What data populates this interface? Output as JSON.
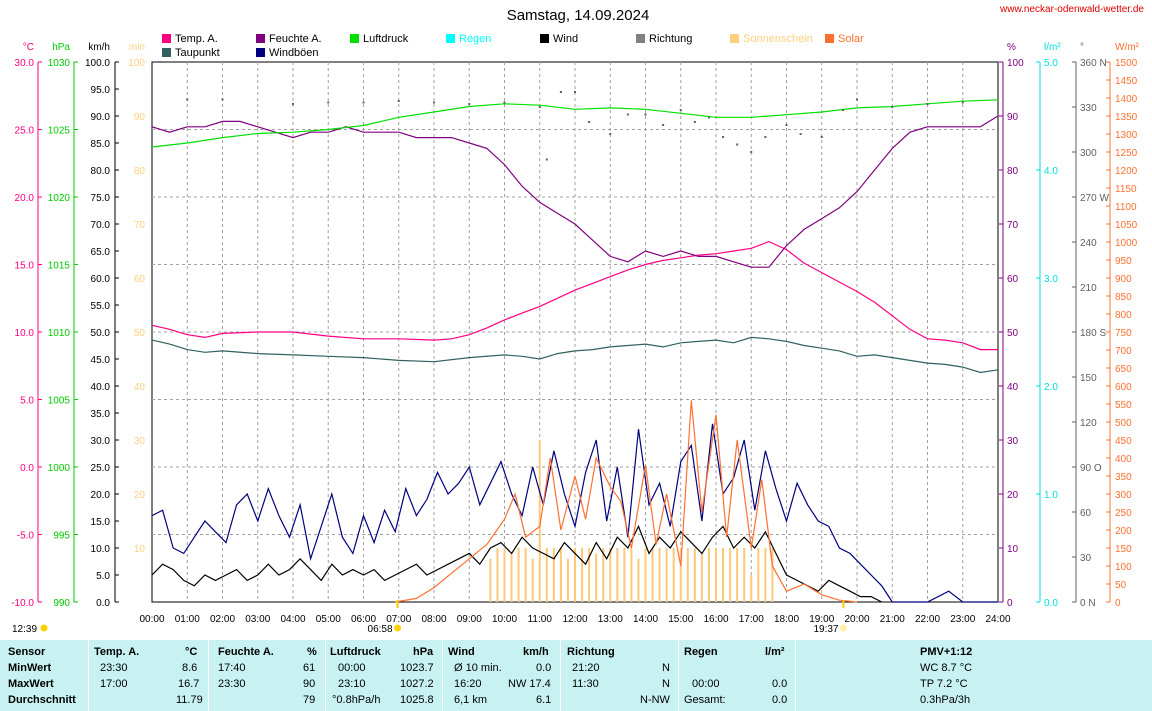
{
  "site_url": "www.neckar-odenwald-wetter.de",
  "chart_data": {
    "type": "line",
    "title": "Samstag, 14.09.2024",
    "x_ticks": [
      "00:00",
      "01:00",
      "02:00",
      "03:00",
      "04:00",
      "05:00",
      "06:00",
      "07:00",
      "08:00",
      "09:00",
      "10:00",
      "11:00",
      "12:00",
      "13:00",
      "14:00",
      "15:00",
      "16:00",
      "17:00",
      "18:00",
      "19:00",
      "20:00",
      "21:00",
      "22:00",
      "23:00",
      "24:00"
    ],
    "xlim": [
      0,
      24
    ],
    "axes": {
      "temp": {
        "unit": "°C",
        "ticks": [
          "30.0",
          "25.0",
          "20.0",
          "15.0",
          "10.0",
          "5.0",
          "0.0",
          "-5.0",
          "-10.0"
        ],
        "color": "#ff0080"
      },
      "pressure": {
        "unit": "hPa",
        "ticks": [
          "1030",
          "1025",
          "1020",
          "1015",
          "1010",
          "1005",
          "1000",
          "995",
          "990"
        ],
        "color": "#00c800"
      },
      "wind": {
        "unit": "km/h",
        "ticks": [
          "100.0",
          "95.0",
          "90.0",
          "85.0",
          "80.0",
          "75.0",
          "70.0",
          "65.0",
          "60.0",
          "55.0",
          "50.0",
          "45.0",
          "40.0",
          "35.0",
          "30.0",
          "25.0",
          "20.0",
          "15.0",
          "10.0",
          "5.0",
          "0.0"
        ],
        "color": "#000000"
      },
      "sun": {
        "unit": "min",
        "ticks": [
          "100",
          "90",
          "80",
          "70",
          "60",
          "50",
          "40",
          "30",
          "20",
          "10"
        ],
        "color": "#ffd080"
      },
      "humidity": {
        "unit": "%",
        "ticks": [
          "100",
          "90",
          "80",
          "70",
          "60",
          "50",
          "40",
          "30",
          "20",
          "10",
          "0"
        ],
        "color": "#800080"
      },
      "rain": {
        "unit": "l/m²",
        "ticks": [
          "5.0",
          "4.0",
          "3.0",
          "2.0",
          "1.0",
          "0.0"
        ],
        "color": "#00e0e0"
      },
      "direction": {
        "unit": "°",
        "ticks": [
          "360 N",
          "330",
          "300",
          "270 W",
          "240",
          "210",
          "180 S",
          "150",
          "120",
          "90 O",
          "60",
          "30",
          "0 N"
        ],
        "color": "#606060"
      },
      "solar": {
        "unit": "W/m²",
        "ticks": [
          "1500",
          "1450",
          "1400",
          "1350",
          "1300",
          "1250",
          "1200",
          "1150",
          "1100",
          "1050",
          "1000",
          "950",
          "900",
          "850",
          "800",
          "750",
          "700",
          "650",
          "600",
          "550",
          "500",
          "450",
          "400",
          "350",
          "300",
          "250",
          "200",
          "150",
          "100",
          "50",
          "0"
        ],
        "color": "#ff7030"
      }
    },
    "legend": [
      {
        "name": "Temp. A.",
        "color": "#ff0080"
      },
      {
        "name": "Feuchte A.",
        "color": "#800080"
      },
      {
        "name": "Luftdruck",
        "color": "#00e000"
      },
      {
        "name": "Regen",
        "color": "#00ffff"
      },
      {
        "name": "Wind",
        "color": "#000000"
      },
      {
        "name": "Richtung",
        "color": "#808080"
      },
      {
        "name": "Sonnenschein",
        "color": "#ffd080"
      },
      {
        "name": "Solar",
        "color": "#ff7030"
      },
      {
        "name": "Taupunkt",
        "color": "#306060"
      },
      {
        "name": "Windböen",
        "color": "#000080"
      }
    ],
    "markers": {
      "sunrise": "06:58",
      "sunset": "19:37",
      "moon": "12:39"
    },
    "series": [
      {
        "name": "Temp. A.",
        "axis": "temp",
        "color": "#ff0080",
        "x": [
          0,
          0.5,
          1,
          1.5,
          2,
          3,
          4,
          5,
          6,
          7,
          8,
          8.5,
          9,
          9.5,
          10,
          10.5,
          11,
          11.5,
          12,
          12.5,
          13,
          13.5,
          14,
          14.5,
          15,
          15.5,
          16,
          16.5,
          17,
          17.5,
          18,
          18.5,
          19,
          19.5,
          20,
          20.5,
          21,
          21.5,
          22,
          22.5,
          23,
          23.5,
          24
        ],
        "y": [
          10.5,
          10.2,
          9.8,
          9.6,
          9.9,
          10.0,
          10.0,
          9.7,
          9.5,
          9.5,
          9.4,
          9.5,
          9.8,
          10.3,
          10.9,
          11.4,
          11.9,
          12.5,
          13.1,
          13.6,
          14.1,
          14.6,
          15.0,
          15.3,
          15.5,
          15.7,
          15.8,
          16.0,
          16.2,
          16.7,
          16.1,
          15.1,
          14.4,
          13.7,
          13.0,
          12.2,
          11.2,
          10.2,
          9.5,
          9.4,
          9.2,
          8.7,
          8.7
        ]
      },
      {
        "name": "Feuchte A.",
        "axis": "humidity",
        "color": "#800080",
        "x": [
          0,
          0.5,
          1,
          1.5,
          2,
          2.5,
          3,
          3.5,
          4,
          4.5,
          5,
          5.5,
          6,
          6.5,
          7,
          7.5,
          8,
          8.5,
          9,
          9.5,
          10,
          10.5,
          11,
          11.5,
          12,
          12.5,
          13,
          13.5,
          14,
          14.5,
          15,
          15.5,
          16,
          16.5,
          17,
          17.5,
          18,
          18.5,
          19,
          19.5,
          20,
          20.5,
          21,
          21.5,
          22,
          22.5,
          23,
          23.5,
          24
        ],
        "y": [
          88,
          87,
          88,
          88,
          89,
          89,
          88,
          87,
          86,
          87,
          87,
          88,
          87,
          87,
          87,
          86,
          86,
          86,
          85,
          84,
          81,
          77,
          74,
          72,
          70,
          67,
          64,
          63,
          65,
          64,
          65,
          64,
          64,
          63,
          62,
          62,
          66,
          69,
          71,
          73,
          76,
          80,
          84,
          87,
          88,
          88,
          88,
          88,
          90
        ]
      },
      {
        "name": "Taupunkt",
        "axis": "temp",
        "color": "#306060",
        "x": [
          0,
          0.5,
          1,
          1.5,
          2,
          3,
          4,
          5,
          6,
          7,
          8,
          9,
          10,
          10.5,
          11,
          11.5,
          12,
          12.5,
          13,
          13.5,
          14,
          14.5,
          15,
          15.5,
          16,
          16.5,
          17,
          17.5,
          18,
          18.5,
          19,
          19.5,
          20,
          20.5,
          21,
          21.5,
          22,
          22.5,
          23,
          23.5,
          24
        ],
        "y": [
          9.4,
          9.1,
          8.7,
          8.5,
          8.6,
          8.4,
          8.3,
          8.2,
          8.1,
          7.9,
          7.8,
          8.1,
          8.3,
          8.2,
          8.0,
          8.4,
          8.6,
          8.7,
          8.9,
          9.0,
          9.1,
          8.9,
          9.2,
          9.3,
          9.4,
          9.2,
          9.6,
          9.5,
          9.3,
          9.0,
          8.8,
          8.6,
          8.2,
          8.3,
          8.1,
          7.9,
          7.7,
          7.6,
          7.4,
          7.0,
          7.2
        ]
      },
      {
        "name": "Luftdruck",
        "axis": "pressure",
        "color": "#00e000",
        "x": [
          0,
          1,
          2,
          3,
          4,
          5,
          6,
          7,
          8,
          9,
          10,
          11,
          12,
          13,
          14,
          15,
          16,
          17,
          18,
          19,
          20,
          21,
          22,
          23,
          24
        ],
        "y": [
          1023.7,
          1024.0,
          1024.4,
          1024.7,
          1024.8,
          1025.0,
          1025.3,
          1025.9,
          1026.3,
          1026.7,
          1026.9,
          1026.8,
          1026.5,
          1026.6,
          1026.5,
          1026.2,
          1025.9,
          1025.9,
          1026.1,
          1026.3,
          1026.6,
          1026.7,
          1026.9,
          1027.1,
          1027.2
        ]
      },
      {
        "name": "Windböen",
        "axis": "wind",
        "color": "#000080",
        "x": [
          0,
          0.3,
          0.6,
          0.9,
          1.2,
          1.5,
          1.8,
          2.1,
          2.4,
          2.7,
          3.0,
          3.3,
          3.6,
          3.9,
          4.2,
          4.5,
          4.8,
          5.1,
          5.4,
          5.7,
          6.0,
          6.3,
          6.6,
          6.9,
          7.2,
          7.5,
          7.8,
          8.1,
          8.4,
          8.7,
          9.0,
          9.3,
          9.6,
          9.9,
          10.2,
          10.5,
          10.8,
          11.1,
          11.4,
          11.7,
          12.0,
          12.3,
          12.6,
          12.9,
          13.2,
          13.5,
          13.8,
          14.1,
          14.4,
          14.7,
          15.0,
          15.3,
          15.6,
          15.9,
          16.2,
          16.5,
          16.8,
          17.1,
          17.4,
          17.7,
          18.0,
          18.3,
          18.6,
          18.9,
          19.2,
          19.5,
          19.8,
          20.1,
          20.4,
          20.7,
          21.0,
          22.0,
          22.6,
          23.0,
          24.0
        ],
        "y": [
          16,
          17,
          10,
          9,
          12,
          15,
          13,
          11,
          18,
          20,
          15,
          21,
          16,
          12,
          18,
          8,
          14,
          20,
          12,
          9,
          16,
          11,
          17,
          13,
          21,
          16,
          19,
          24,
          20,
          22,
          25,
          18,
          22,
          26,
          20,
          16,
          25,
          18,
          28,
          20,
          14,
          24,
          30,
          15,
          25,
          12,
          32,
          18,
          22,
          14,
          26,
          29,
          15,
          33,
          20,
          23,
          30,
          17,
          28,
          21,
          15,
          22,
          18,
          15,
          14,
          10,
          9,
          7,
          5,
          3,
          0,
          0,
          2,
          0,
          0
        ]
      },
      {
        "name": "Wind",
        "axis": "wind",
        "color": "#000000",
        "x": [
          0,
          0.3,
          0.6,
          0.9,
          1.2,
          1.5,
          1.8,
          2.1,
          2.4,
          2.7,
          3.0,
          3.3,
          3.6,
          3.9,
          4.2,
          4.5,
          4.8,
          5.1,
          5.4,
          5.7,
          6.0,
          6.3,
          6.6,
          6.9,
          7.2,
          7.5,
          7.8,
          8.1,
          8.4,
          8.7,
          9.0,
          9.3,
          9.6,
          9.9,
          10.2,
          10.5,
          10.8,
          11.1,
          11.4,
          11.7,
          12.0,
          12.3,
          12.6,
          12.9,
          13.2,
          13.5,
          13.8,
          14.1,
          14.4,
          14.7,
          15.0,
          15.3,
          15.6,
          15.9,
          16.2,
          16.5,
          16.8,
          17.1,
          17.4,
          17.7,
          18.0,
          18.3,
          18.6,
          18.9,
          19.2,
          19.5,
          19.8,
          20.1,
          20.4,
          20.7
        ],
        "y": [
          5,
          7,
          6,
          4,
          3,
          5,
          4,
          5,
          6,
          4,
          5,
          7,
          5,
          6,
          8,
          6,
          4,
          7,
          5,
          6,
          5,
          6,
          4,
          5,
          6,
          7,
          5,
          6,
          7,
          8,
          9,
          7,
          10,
          11,
          9,
          12,
          10,
          9,
          8,
          11,
          9,
          7,
          11,
          8,
          12,
          10,
          14,
          9,
          12,
          10,
          13,
          11,
          9,
          12,
          14,
          10,
          12,
          10,
          13,
          9,
          5,
          4,
          3,
          2,
          4,
          3,
          2,
          1,
          1,
          0
        ]
      },
      {
        "name": "Solar",
        "axis": "solar",
        "color": "#ff7030",
        "x": [
          6.9,
          7.5,
          8,
          8.5,
          9,
          9.5,
          10,
          10.3,
          10.6,
          11,
          11.3,
          11.6,
          12,
          12.3,
          12.6,
          13,
          13.3,
          13.6,
          14,
          14.3,
          14.6,
          15,
          15.3,
          15.6,
          16,
          16.3,
          16.6,
          17,
          17.3,
          17.6,
          18,
          18.5,
          19,
          19.5,
          20
        ],
        "y": [
          0,
          10,
          40,
          80,
          120,
          160,
          230,
          300,
          180,
          210,
          400,
          200,
          350,
          230,
          400,
          320,
          280,
          150,
          380,
          160,
          300,
          100,
          560,
          250,
          520,
          180,
          450,
          150,
          340,
          100,
          30,
          50,
          20,
          5,
          0
        ]
      },
      {
        "name": "Sonnenschein",
        "axis": "sun",
        "type": "bar",
        "x": [
          9.6,
          9.8,
          10,
          10.2,
          10.4,
          10.6,
          10.8,
          11,
          11.2,
          11.4,
          11.6,
          11.8,
          12,
          12.2,
          12.4,
          12.6,
          12.8,
          13,
          13.2,
          13.4,
          13.6,
          13.8,
          14,
          14.2,
          14.4,
          14.6,
          14.8,
          15,
          15.2,
          15.4,
          15.6,
          15.8,
          16,
          16.2,
          16.4,
          16.6,
          16.8,
          17,
          17.2,
          17.4,
          17.6
        ],
        "y": [
          8,
          10,
          10,
          9,
          10,
          10,
          8,
          30,
          10,
          10,
          10,
          8,
          10,
          10,
          10,
          9,
          10,
          10,
          10,
          10,
          10,
          8,
          10,
          10,
          10,
          10,
          10,
          10,
          10,
          10,
          9,
          10,
          10,
          10,
          10,
          10,
          10,
          5,
          10,
          10,
          10
        ]
      },
      {
        "name": "Richtung",
        "axis": "direction",
        "type": "scatter",
        "x": [
          1,
          2,
          4,
          5,
          6,
          7,
          8,
          9,
          10,
          11,
          11.2,
          11.6,
          12,
          12.4,
          13,
          13.5,
          14,
          14.5,
          15,
          15.4,
          15.8,
          16.2,
          16.6,
          17,
          17.4,
          18,
          18.4,
          19,
          19.6,
          20,
          21,
          22,
          23
        ],
        "y": [
          335,
          335,
          332,
          333,
          333,
          334,
          333,
          332,
          333,
          330,
          295,
          340,
          340,
          320,
          312,
          325,
          325,
          318,
          328,
          320,
          323,
          310,
          305,
          300,
          310,
          318,
          312,
          310,
          328,
          335,
          330,
          332,
          333
        ]
      }
    ]
  },
  "stats": {
    "headers": {
      "sensor": "Sensor",
      "temp": "Temp. A.",
      "temp_unit": "°C",
      "hum": "Feuchte A.",
      "hum_unit": "%",
      "press": "Luftdruck",
      "press_unit": "hPa",
      "wind": "Wind",
      "wind_unit": "km/h",
      "dir": "Richtung",
      "rain": "Regen",
      "rain_unit": "l/m²",
      "pmv": "PMV+1:12"
    },
    "rows": [
      {
        "label": "MinWert",
        "temp_t": "23:30",
        "temp_v": "8.6",
        "hum_t": "17:40",
        "hum_v": "61",
        "press_t": "00:00",
        "press_v": "1023.7",
        "wind_t": "Ø 10 min.",
        "wind_v": "0.0",
        "dir_t": "21:20",
        "dir_v": "N",
        "rain_t": "",
        "rain_v": "",
        "pmv": "WC 8.7 °C"
      },
      {
        "label": "MaxWert",
        "temp_t": "17:00",
        "temp_v": "16.7",
        "hum_t": "23:30",
        "hum_v": "90",
        "press_t": "23:10",
        "press_v": "1027.2",
        "wind_t": "16:20",
        "wind_v": "NW 17.4",
        "dir_t": "11:30",
        "dir_v": "N",
        "rain_t": "00:00",
        "rain_v": "0.0",
        "pmv": "TP 7.2 °C"
      },
      {
        "label": "Durchschnitt",
        "temp_t": "",
        "temp_v": "11.79",
        "hum_t": "",
        "hum_v": "79",
        "press_t": "°0.8hPa/h",
        "press_v": "1025.8",
        "wind_t": "6,1 km",
        "wind_v": "6.1",
        "dir_t": "",
        "dir_v": "N-NW",
        "rain_t": "Gesamt:",
        "rain_v": "0.0",
        "pmv": "0.3hPa/3h"
      }
    ]
  }
}
